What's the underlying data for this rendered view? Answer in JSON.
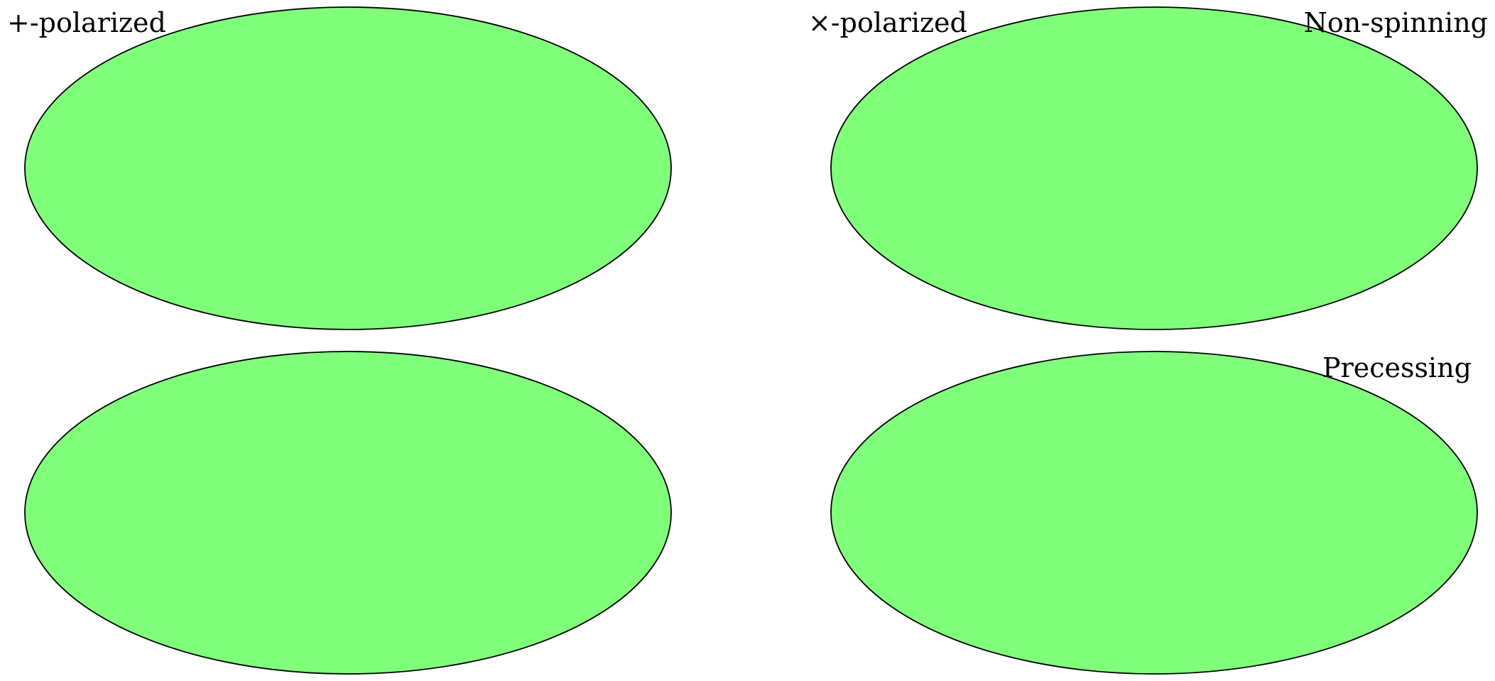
{
  "labels": {
    "col_left": "+-polarized",
    "col_right": "×-polarized",
    "row_top": "Non-spinning",
    "row_bottom": "Precessing"
  },
  "colors": {
    "fill": "#80ff7b",
    "outline": "#000000",
    "background": "#ffffff"
  },
  "chart_data": [
    {
      "type": "heatmap",
      "projection": "mollweide",
      "polarization": "+-polarized",
      "system": "Non-spinning"
    },
    {
      "type": "heatmap",
      "projection": "mollweide",
      "polarization": "×-polarized",
      "system": "Non-spinning"
    },
    {
      "type": "heatmap",
      "projection": "mollweide",
      "polarization": "+-polarized",
      "system": "Precessing"
    },
    {
      "type": "heatmap",
      "projection": "mollweide",
      "polarization": "×-polarized",
      "system": "Precessing"
    }
  ]
}
